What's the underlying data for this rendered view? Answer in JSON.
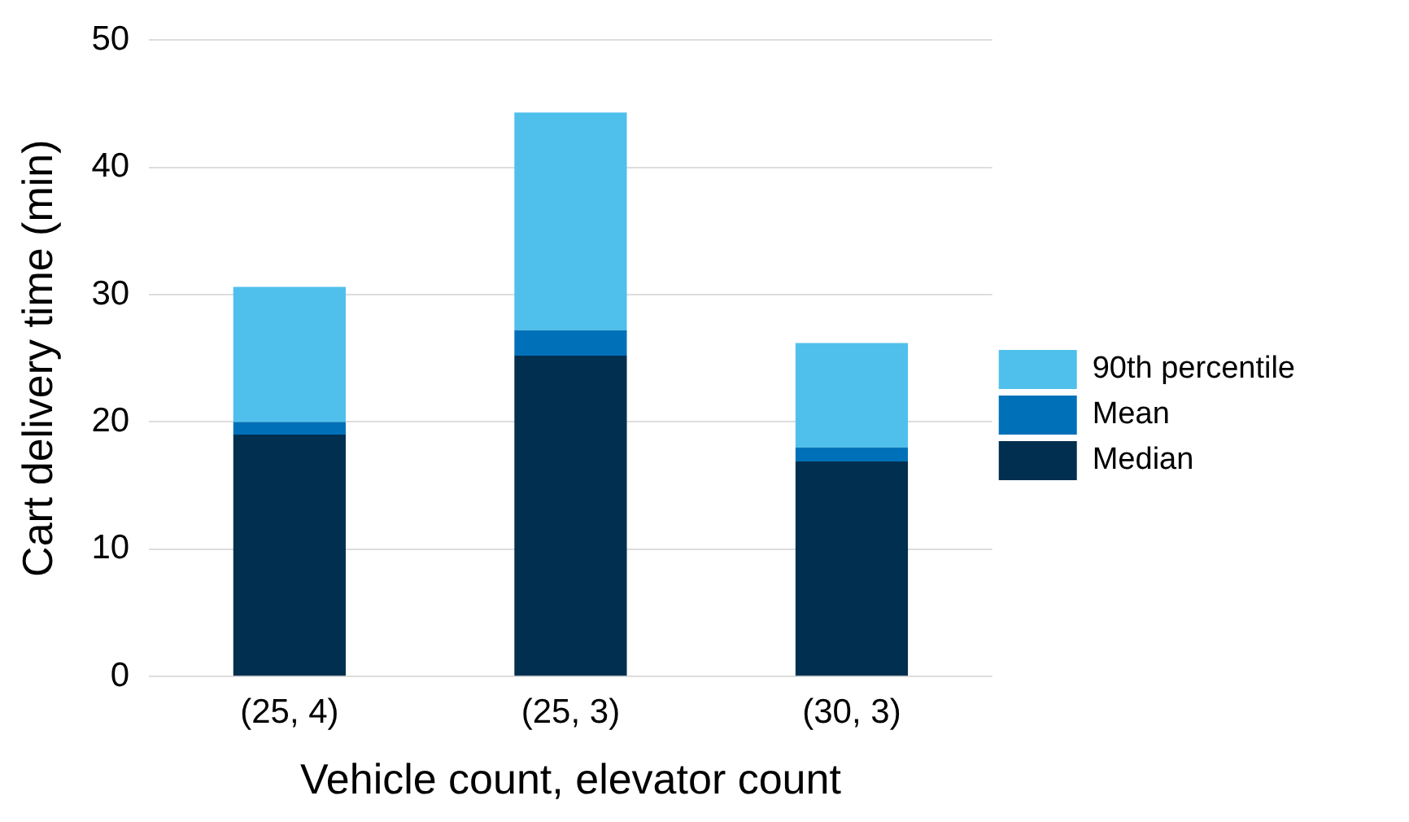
{
  "chart_data": {
    "type": "bar",
    "stacked": true,
    "xlabel": "Vehicle count, elevator count",
    "ylabel": "Cart delivery time (min)",
    "categories": [
      "(25, 4)",
      "(25, 3)",
      "(30, 3)"
    ],
    "series": [
      {
        "name": "Median",
        "color": "#002f4f",
        "values": [
          19,
          25.2,
          16.9
        ]
      },
      {
        "name": "Mean",
        "color": "#0071b9",
        "values": [
          1,
          2,
          1.1
        ]
      },
      {
        "name": "90th percentile",
        "color": "#4fc0ec",
        "values": [
          10.6,
          17.1,
          8.2
        ]
      }
    ],
    "ylim": [
      0,
      50
    ],
    "yticks": [
      0,
      10,
      20,
      30,
      40,
      50
    ],
    "grid": "y",
    "legend": "right"
  }
}
